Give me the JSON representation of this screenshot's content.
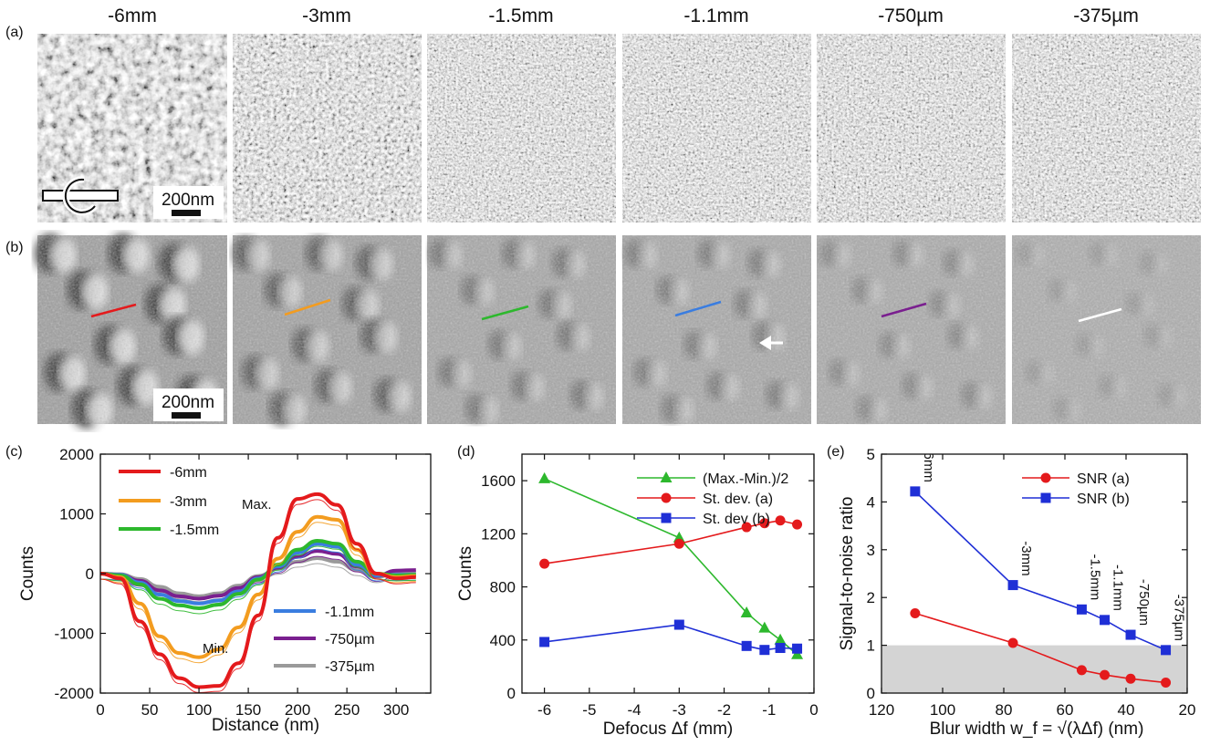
{
  "panel_labels": {
    "a": "(a)",
    "b": "(b)",
    "c": "(c)",
    "d": "(d)",
    "e": "(e)"
  },
  "defocus_labels": [
    "-6mm",
    "-3mm",
    "-1.5mm",
    "-1.1mm",
    "-750µm",
    "-375µm"
  ],
  "scale_bar_label": "200nm",
  "line_colors": [
    "#e41a1c",
    "#f39c1f",
    "#2db82d",
    "#3a7de0",
    "#7a1f8f",
    "#ffffff"
  ],
  "chart_data": [
    {
      "type": "line",
      "panel": "(c)",
      "xlabel": "Distance (nm)",
      "ylabel": "Counts",
      "xlim": [
        0,
        335
      ],
      "ylim": [
        -2000,
        2000
      ],
      "xticks": [
        0,
        50,
        100,
        150,
        200,
        250,
        300
      ],
      "yticks": [
        -2000,
        -1000,
        0,
        1000,
        2000
      ],
      "x": [
        0,
        20,
        40,
        60,
        80,
        100,
        120,
        140,
        160,
        180,
        200,
        220,
        240,
        260,
        280,
        300,
        320
      ],
      "series": [
        {
          "name": "-6mm",
          "color": "#e41a1c",
          "values": [
            0,
            -80,
            -800,
            -1350,
            -1750,
            -1900,
            -1880,
            -1500,
            -700,
            600,
            1250,
            1330,
            1150,
            500,
            0,
            -80,
            -60
          ]
        },
        {
          "name": "-3mm",
          "color": "#f39c1f",
          "values": [
            0,
            -60,
            -500,
            -1050,
            -1330,
            -1400,
            -1270,
            -900,
            -350,
            250,
            700,
            950,
            900,
            400,
            0,
            -60,
            -40
          ]
        },
        {
          "name": "-1.5mm",
          "color": "#2db82d",
          "values": [
            0,
            -30,
            -180,
            -420,
            -530,
            -580,
            -520,
            -340,
            -100,
            150,
            400,
            550,
            500,
            200,
            0,
            -30,
            -20
          ]
        },
        {
          "name": "-1.1mm",
          "color": "#3a7de0",
          "values": [
            0,
            -20,
            -150,
            -350,
            -460,
            -500,
            -450,
            -300,
            -80,
            120,
            350,
            500,
            450,
            150,
            -30,
            -20,
            -20
          ]
        },
        {
          "name": "-750µm",
          "color": "#7a1f8f",
          "values": [
            0,
            -20,
            -120,
            -280,
            -380,
            -420,
            -370,
            -240,
            -60,
            100,
            280,
            380,
            330,
            120,
            -40,
            50,
            60
          ]
        },
        {
          "name": "-375µm",
          "color": "#9a9a9a",
          "values": [
            0,
            -10,
            -90,
            -220,
            -330,
            -380,
            -330,
            -200,
            -40,
            80,
            200,
            260,
            200,
            60,
            -60,
            20,
            30
          ]
        }
      ],
      "annotations": [
        "Max.",
        "Min."
      ]
    },
    {
      "type": "line",
      "panel": "(d)",
      "xlabel": "Defocus Δf (mm)",
      "ylabel": "Counts",
      "xlim": [
        -6.5,
        0
      ],
      "ylim": [
        0,
        1800
      ],
      "xticks": [
        -6,
        -5,
        -4,
        -3,
        -2,
        -1,
        0
      ],
      "yticks": [
        0,
        400,
        800,
        1200,
        1600
      ],
      "x": [
        -6,
        -3,
        -1.5,
        -1.1,
        -0.75,
        -0.375
      ],
      "series": [
        {
          "name": "(Max.-Min.)/2",
          "color": "#2db82d",
          "marker": "triangle",
          "values": [
            1615,
            1170,
            605,
            490,
            400,
            290
          ]
        },
        {
          "name": "St. dev. (a)",
          "color": "#e41a1c",
          "marker": "circle",
          "values": [
            975,
            1125,
            1250,
            1280,
            1300,
            1270
          ]
        },
        {
          "name": "St. dev (b)",
          "color": "#1f2fd6",
          "marker": "square",
          "values": [
            385,
            515,
            355,
            325,
            340,
            335
          ]
        }
      ]
    },
    {
      "type": "line",
      "panel": "(e)",
      "xlabel": "Blur width w_f = √(λΔf) (nm)",
      "ylabel": "Signal-to-noise ratio",
      "xlim": [
        120,
        20
      ],
      "ylim": [
        0,
        5
      ],
      "xticks": [
        120,
        100,
        80,
        60,
        40,
        20
      ],
      "yticks": [
        0,
        1,
        2,
        3,
        4,
        5
      ],
      "shaded_region_below": 1,
      "x": [
        109,
        77,
        54.5,
        47,
        38.5,
        27
      ],
      "point_labels": [
        "-6mm",
        "-3mm",
        "-1.5mm",
        "-1.1mm",
        "-750µm",
        "-375µm"
      ],
      "series": [
        {
          "name": "SNR (a)",
          "color": "#e41a1c",
          "marker": "circle",
          "values": [
            1.67,
            1.05,
            0.48,
            0.38,
            0.3,
            0.22
          ]
        },
        {
          "name": "SNR (b)",
          "color": "#1f2fd6",
          "marker": "square",
          "values": [
            4.22,
            2.26,
            1.75,
            1.53,
            1.22,
            0.9
          ]
        }
      ]
    }
  ]
}
